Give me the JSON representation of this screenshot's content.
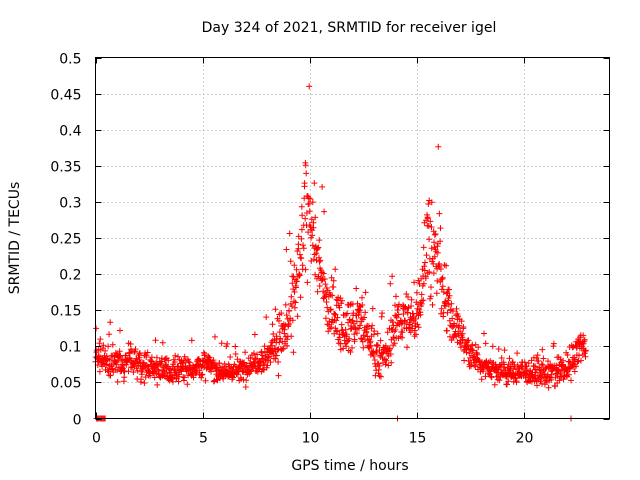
{
  "chart_data": {
    "type": "scatter",
    "title": "Day 324 of 2021, SRMTID for receiver igel",
    "xlabel": "GPS time / hours",
    "ylabel": "SRMTID / TECUs",
    "xlim": [
      0,
      24
    ],
    "ylim": [
      0,
      0.5
    ],
    "xticks": [
      0,
      5,
      10,
      15,
      20
    ],
    "xtick_labels": [
      "0",
      "5",
      "10",
      "15",
      "20"
    ],
    "yticks": [
      0,
      0.05,
      0.1,
      0.15,
      0.2,
      0.25,
      0.3,
      0.35,
      0.4,
      0.45,
      0.5
    ],
    "ytick_labels": [
      "0",
      "0.05",
      "0.1",
      "0.15",
      "0.2",
      "0.25",
      "0.3",
      "0.35",
      "0.4",
      "0.45",
      "0.5"
    ],
    "grid": true,
    "marker": "+",
    "series_color": "#ff0000",
    "envelope": {
      "x": [
        0.0,
        0.3,
        0.5,
        1.0,
        1.5,
        2.0,
        2.5,
        3.0,
        3.5,
        4.0,
        4.5,
        5.0,
        5.5,
        6.0,
        6.5,
        7.0,
        7.5,
        8.0,
        8.3,
        8.6,
        9.0,
        9.3,
        9.6,
        9.8,
        10.0,
        10.2,
        10.5,
        10.8,
        11.0,
        11.3,
        11.6,
        12.0,
        12.3,
        12.6,
        13.0,
        13.3,
        13.6,
        13.9,
        14.2,
        14.5,
        14.8,
        15.0,
        15.3,
        15.5,
        15.8,
        16.0,
        16.3,
        16.6,
        17.0,
        17.3,
        17.6,
        18.0,
        18.5,
        19.0,
        19.5,
        20.0,
        20.5,
        21.0,
        21.5,
        22.0,
        22.3,
        22.6,
        22.9
      ],
      "center": [
        0.085,
        0.085,
        0.075,
        0.075,
        0.08,
        0.075,
        0.07,
        0.07,
        0.065,
        0.07,
        0.07,
        0.075,
        0.07,
        0.065,
        0.065,
        0.07,
        0.08,
        0.085,
        0.1,
        0.11,
        0.13,
        0.17,
        0.22,
        0.27,
        0.3,
        0.25,
        0.2,
        0.16,
        0.15,
        0.14,
        0.13,
        0.13,
        0.14,
        0.12,
        0.1,
        0.08,
        0.09,
        0.12,
        0.14,
        0.14,
        0.13,
        0.15,
        0.2,
        0.26,
        0.22,
        0.22,
        0.16,
        0.14,
        0.12,
        0.1,
        0.085,
        0.075,
        0.07,
        0.065,
        0.065,
        0.065,
        0.065,
        0.06,
        0.065,
        0.065,
        0.08,
        0.1,
        0.1
      ],
      "spread": [
        0.02,
        0.03,
        0.03,
        0.03,
        0.03,
        0.03,
        0.025,
        0.025,
        0.025,
        0.025,
        0.025,
        0.025,
        0.025,
        0.02,
        0.02,
        0.025,
        0.025,
        0.03,
        0.04,
        0.05,
        0.06,
        0.08,
        0.1,
        0.12,
        0.11,
        0.09,
        0.07,
        0.06,
        0.06,
        0.05,
        0.05,
        0.05,
        0.06,
        0.05,
        0.04,
        0.035,
        0.04,
        0.05,
        0.05,
        0.05,
        0.05,
        0.06,
        0.09,
        0.12,
        0.11,
        0.08,
        0.07,
        0.05,
        0.04,
        0.035,
        0.03,
        0.025,
        0.025,
        0.025,
        0.025,
        0.025,
        0.025,
        0.025,
        0.025,
        0.03,
        0.03,
        0.035,
        0.02
      ]
    },
    "point_count": 1600,
    "zero_points_x": [
      0.05,
      0.1,
      0.15,
      0.2,
      0.25,
      0.3,
      0.35,
      0.4,
      0.45,
      14.1,
      22.2
    ]
  }
}
